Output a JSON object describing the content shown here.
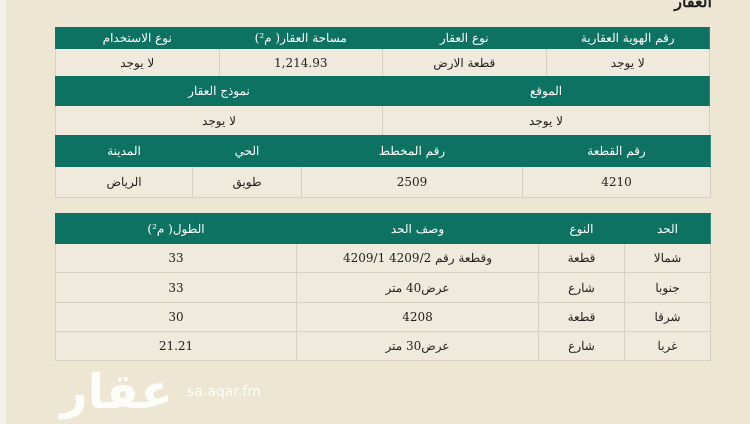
{
  "title": "العقار",
  "colors": {
    "header_bg": "#0d7262",
    "page_bg": "#ece6d3"
  },
  "table1": {
    "headers": [
      "رقم الهوية العقارية",
      "نوع العقار",
      "مساحة العقار( م²)",
      "نوع الاستخدام"
    ],
    "values": [
      "لا يوجد",
      "قطعة الارض",
      "1,214.93",
      "لا يوجد"
    ]
  },
  "table2": {
    "headers": [
      "الموقع",
      "نموذج العقار"
    ],
    "values": [
      "لا يوجد",
      "لا يوجد"
    ]
  },
  "table3": {
    "headers": [
      "رقم القطعة",
      "رقم المخطط",
      "الحي",
      "المدينة"
    ],
    "values": [
      "4210",
      "2509",
      "طويق",
      "الرياض"
    ]
  },
  "boundaries": {
    "headers": [
      "الحد",
      "النوع",
      "وصف الحد",
      "الطول( م²)"
    ],
    "rows": [
      [
        "شمالا",
        "قطعة",
        "وقطعة رقم 4209/2 4209/1",
        "33"
      ],
      [
        "جنوبا",
        "شارع",
        "عرض40 متر",
        "33"
      ],
      [
        "شرقا",
        "قطعة",
        "4208",
        "30"
      ],
      [
        "غربا",
        "شارع",
        "عرض30 متر",
        "21.21"
      ]
    ]
  },
  "watermark": {
    "logo": "عقار",
    "site": "sa.aqar.fm"
  }
}
